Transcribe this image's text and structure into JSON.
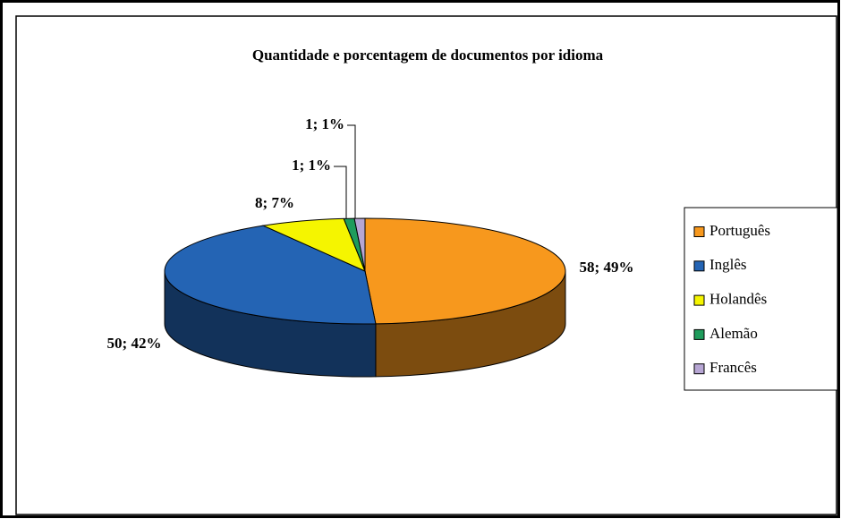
{
  "chart_data": {
    "type": "pie3d",
    "title": "Quantidade e porcentagem de documentos por idioma",
    "categories": [
      "Português",
      "Inglês",
      "Holandês",
      "Alemão",
      "Francês"
    ],
    "values": [
      58,
      50,
      8,
      1,
      1
    ],
    "value_labels": [
      "58; 49%",
      "50; 42%",
      "8; 7%",
      "1; 1%",
      "1; 1%"
    ],
    "colors": [
      "#f7981d",
      "#2464b4",
      "#f5f500",
      "#1f9c5c",
      "#b7a6d4"
    ],
    "legend": "right"
  }
}
